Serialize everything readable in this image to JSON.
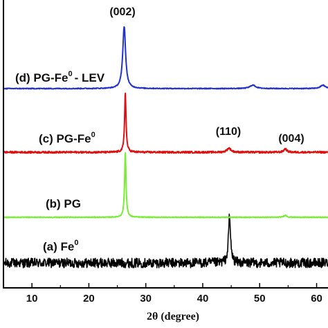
{
  "chart_data": {
    "type": "line",
    "title": "",
    "xlabel": "2θ (degree)",
    "ylabel": "",
    "xlim": [
      5,
      62
    ],
    "x_ticks": [
      "10",
      "20",
      "30",
      "40",
      "50",
      "60"
    ],
    "grid": false,
    "series": [
      {
        "id": "fe0",
        "label_main": "(a) Fe",
        "label_sup": "0",
        "label_tail": "",
        "color": "#000000",
        "baseline": 380,
        "noise": 7,
        "peaks": [
          {
            "center": 44.7,
            "height": 67,
            "width": 0.22
          }
        ]
      },
      {
        "id": "pg",
        "label_main": "(b) PG",
        "label_sup": "",
        "label_tail": "",
        "color": "#77ee33",
        "baseline": 314,
        "noise": 0.6,
        "peaks": [
          {
            "center": 26.4,
            "height": 95,
            "width": 0.15
          },
          {
            "center": 54.5,
            "height": 3,
            "width": 0.3
          }
        ]
      },
      {
        "id": "pg-fe0",
        "label_main": "(c) PG-Fe",
        "label_sup": "0",
        "label_tail": "",
        "color": "#e01010",
        "baseline": 220,
        "noise": 1.3,
        "peaks": [
          {
            "center": 26.4,
            "height": 88,
            "width": 0.15
          },
          {
            "center": 44.6,
            "height": 6,
            "width": 0.4
          },
          {
            "center": 54.5,
            "height": 5,
            "width": 0.3
          }
        ]
      },
      {
        "id": "pg-fe0-lev",
        "label_main": "(d) PG-Fe",
        "label_sup": "0",
        "label_tail": "- LEV",
        "color": "#2233cc",
        "baseline": 128,
        "noise": 0.6,
        "peaks": [
          {
            "center": 26.2,
            "height": 90,
            "width": 0.3
          },
          {
            "center": 48.8,
            "height": 5,
            "width": 0.6
          },
          {
            "center": 61.1,
            "height": 5,
            "width": 0.5
          }
        ]
      }
    ],
    "peak_annotations": [
      {
        "text": "(002)",
        "x": 26.2,
        "series": "pg-fe0-lev"
      },
      {
        "text": "(110)",
        "x": 44.6,
        "series": "pg-fe0"
      },
      {
        "text": "(004)",
        "x": 54.5,
        "series": "pg-fe0"
      }
    ]
  }
}
